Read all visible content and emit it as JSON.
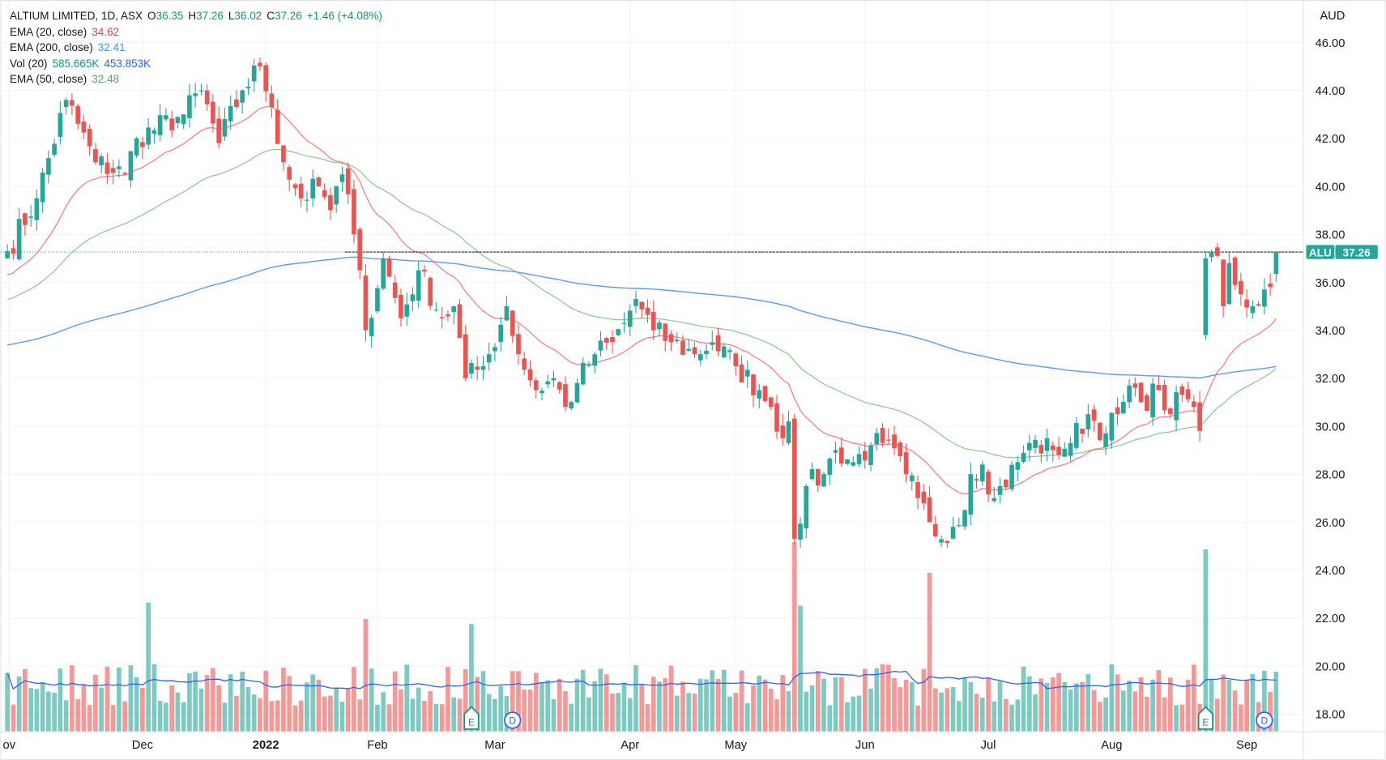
{
  "header": {
    "symbol_title": "ALTIUM LIMITED, 1D, ASX",
    "open_label": "O",
    "open": "36.35",
    "high_label": "H",
    "high": "37.26",
    "low_label": "L",
    "low": "36.02",
    "close_label": "C",
    "close": "37.26",
    "change": "+1.46 (+4.08%)"
  },
  "indicators": [
    {
      "label": "EMA (20, close)",
      "value": "34.62",
      "color": "#f7525f"
    },
    {
      "label": "EMA (200, close)",
      "value": "32.41",
      "color": "#4a90e2"
    },
    {
      "label": "Vol (20)",
      "value": "585.665K",
      "value2": "453.853K",
      "color": "#089981"
    },
    {
      "label": "EMA (50, close)",
      "value": "32.48",
      "color": "#4caf50"
    }
  ],
  "price_scale": {
    "currency": "AUD",
    "ticks": [
      "46.00",
      "44.00",
      "42.00",
      "40.00",
      "38.00",
      "36.00",
      "34.00",
      "32.00",
      "30.00",
      "28.00",
      "26.00",
      "24.00",
      "22.00",
      "20.00",
      "18.00"
    ]
  },
  "last_price_tag": {
    "ticker": "ALU",
    "price": "37.26"
  },
  "time_scale": {
    "ticks": [
      {
        "label": "ov",
        "date": "2021-11-01"
      },
      {
        "label": "Dec",
        "date": "2021-12-01"
      },
      {
        "label": "2022",
        "date": "2022-01-04",
        "bold": true
      },
      {
        "label": "Feb",
        "date": "2022-02-01"
      },
      {
        "label": "Mar",
        "date": "2022-03-01"
      },
      {
        "label": "Apr",
        "date": "2022-04-01"
      },
      {
        "label": "May",
        "date": "2022-05-02"
      },
      {
        "label": "Jun",
        "date": "2022-06-01"
      },
      {
        "label": "Jul",
        "date": "2022-07-01"
      },
      {
        "label": "Aug",
        "date": "2022-08-01"
      },
      {
        "label": "Sep",
        "date": "2022-09-01"
      }
    ]
  },
  "events": [
    {
      "type": "E",
      "label": "E",
      "date": "2022-02-23"
    },
    {
      "type": "D",
      "label": "D",
      "date": "2022-03-04"
    },
    {
      "type": "E",
      "label": "E",
      "date": "2022-08-23"
    },
    {
      "type": "D",
      "label": "D",
      "date": "2022-09-06"
    }
  ],
  "colors": {
    "up": "#26a69a",
    "down": "#ef5350",
    "ema20": "#f7525f",
    "ema50": "#66bb6a",
    "ema200": "#5b9cf6",
    "volma": "#2962ff"
  },
  "chart_data": {
    "type": "candlestick",
    "title": "ALTIUM LIMITED, 1D, ASX",
    "ylabel": "AUD",
    "ylim": [
      17,
      47
    ],
    "grid": true,
    "close_anchors": [
      [
        "2021-10-29",
        37.3
      ],
      [
        "2021-11-05",
        39.5
      ],
      [
        "2021-11-12",
        43.6
      ],
      [
        "2021-11-19",
        41.0
      ],
      [
        "2021-11-26",
        40.5
      ],
      [
        "2021-11-30",
        42.0
      ],
      [
        "2021-12-10",
        43.0
      ],
      [
        "2021-12-15",
        44.0
      ],
      [
        "2021-12-20",
        41.8
      ],
      [
        "2021-12-24",
        44.0
      ],
      [
        "2021-12-31",
        45.0
      ],
      [
        "2022-01-05",
        43.3
      ],
      [
        "2022-01-07",
        41.0
      ],
      [
        "2022-01-12",
        39.5
      ],
      [
        "2022-01-17",
        40.0
      ],
      [
        "2022-01-19",
        39.0
      ],
      [
        "2022-01-21",
        40.5
      ],
      [
        "2022-01-25",
        38.0
      ],
      [
        "2022-01-27",
        36.5
      ],
      [
        "2022-01-28",
        34.0
      ],
      [
        "2022-02-02",
        37.0
      ],
      [
        "2022-02-07",
        34.5
      ],
      [
        "2022-02-10",
        36.5
      ],
      [
        "2022-02-16",
        34.5
      ],
      [
        "2022-02-18",
        35.0
      ],
      [
        "2022-02-22",
        32.0
      ],
      [
        "2022-02-25",
        32.5
      ],
      [
        "2022-02-28",
        33.0
      ],
      [
        "2022-03-03",
        35.0
      ],
      [
        "2022-03-07",
        33.0
      ],
      [
        "2022-03-10",
        31.5
      ],
      [
        "2022-03-15",
        32.0
      ],
      [
        "2022-03-17",
        30.8
      ],
      [
        "2022-03-21",
        31.8
      ],
      [
        "2022-03-24",
        33.0
      ],
      [
        "2022-03-29",
        33.5
      ],
      [
        "2022-03-31",
        34.3
      ],
      [
        "2022-04-04",
        35.3
      ],
      [
        "2022-04-07",
        34.0
      ],
      [
        "2022-04-12",
        33.5
      ],
      [
        "2022-04-20",
        33.0
      ],
      [
        "2022-04-26",
        33.5
      ],
      [
        "2022-05-02",
        32.5
      ],
      [
        "2022-05-06",
        31.5
      ],
      [
        "2022-05-10",
        30.8
      ],
      [
        "2022-05-12",
        29.5
      ],
      [
        "2022-05-13",
        30.2
      ],
      [
        "2022-05-16",
        25.3
      ],
      [
        "2022-05-18",
        27.5
      ],
      [
        "2022-05-23",
        28.0
      ],
      [
        "2022-05-25",
        29.0
      ],
      [
        "2022-05-30",
        28.5
      ],
      [
        "2022-06-02",
        29.2
      ],
      [
        "2022-06-06",
        29.3
      ],
      [
        "2022-06-10",
        28.0
      ],
      [
        "2022-06-15",
        27.0
      ],
      [
        "2022-06-17",
        26.0
      ],
      [
        "2022-06-20",
        25.4
      ],
      [
        "2022-06-23",
        25.8
      ],
      [
        "2022-06-27",
        26.5
      ],
      [
        "2022-06-28",
        28.0
      ],
      [
        "2022-06-30",
        28.4
      ],
      [
        "2022-07-04",
        27.0
      ],
      [
        "2022-07-08",
        28.5
      ],
      [
        "2022-07-12",
        29.3
      ],
      [
        "2022-07-18",
        29.0
      ],
      [
        "2022-07-21",
        29.3
      ],
      [
        "2022-07-26",
        30.5
      ],
      [
        "2022-07-29",
        29.7
      ],
      [
        "2022-08-02",
        30.5
      ],
      [
        "2022-08-05",
        31.6
      ],
      [
        "2022-08-08",
        31.0
      ],
      [
        "2022-08-11",
        31.5
      ],
      [
        "2022-08-15",
        30.5
      ],
      [
        "2022-08-17",
        31.3
      ],
      [
        "2022-08-19",
        30.8
      ],
      [
        "2022-08-22",
        29.8
      ],
      [
        "2022-08-23",
        37.0
      ],
      [
        "2022-08-25",
        37.1
      ],
      [
        "2022-08-26",
        35.0
      ],
      [
        "2022-08-29",
        36.8
      ],
      [
        "2022-08-31",
        35.5
      ],
      [
        "2022-09-02",
        35.0
      ],
      [
        "2022-09-06",
        35.7
      ],
      [
        "2022-09-07",
        35.8
      ],
      [
        "2022-09-08",
        37.26
      ]
    ],
    "last_bar": {
      "date": "2022-09-08",
      "open": 36.35,
      "high": 37.26,
      "low": 36.02,
      "close": 37.26,
      "volume": 585665
    },
    "volume_spikes": [
      [
        "2021-12-02",
        1260000
      ],
      [
        "2022-01-28",
        1100000
      ],
      [
        "2022-02-23",
        1050000
      ],
      [
        "2022-05-16",
        1850000
      ],
      [
        "2022-05-17",
        1230000
      ],
      [
        "2022-06-17",
        1550000
      ],
      [
        "2022-08-23",
        1780000
      ]
    ],
    "holidays": [
      "2021-12-27",
      "2021-12-28",
      "2022-01-03",
      "2022-01-26",
      "2022-04-15",
      "2022-04-18",
      "2022-04-25",
      "2022-06-13"
    ],
    "ema_seeds": {
      "ema20": 36.2,
      "ema50": 35.2,
      "ema200": 33.35
    },
    "reference_level": 37.26
  }
}
